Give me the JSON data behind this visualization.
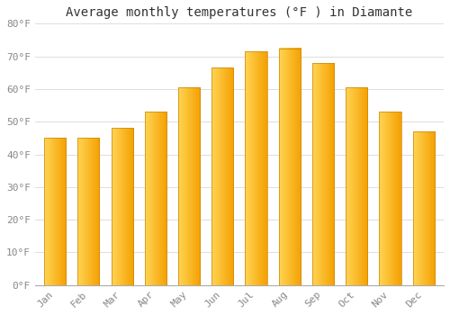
{
  "title": "Average monthly temperatures (°F ) in Diamante",
  "months": [
    "Jan",
    "Feb",
    "Mar",
    "Apr",
    "May",
    "Jun",
    "Jul",
    "Aug",
    "Sep",
    "Oct",
    "Nov",
    "Dec"
  ],
  "values": [
    45,
    45,
    48,
    53,
    60.5,
    66.5,
    71.5,
    72.5,
    68,
    60.5,
    53,
    47
  ],
  "bar_color_left": "#FFD555",
  "bar_color_right": "#F5A000",
  "bar_edge_color": "#C8860A",
  "ylim": [
    0,
    80
  ],
  "yticks": [
    0,
    10,
    20,
    30,
    40,
    50,
    60,
    70,
    80
  ],
  "ytick_labels": [
    "0°F",
    "10°F",
    "20°F",
    "30°F",
    "40°F",
    "50°F",
    "60°F",
    "70°F",
    "80°F"
  ],
  "bg_color": "#FFFFFF",
  "grid_color": "#DDDDDD",
  "title_fontsize": 10,
  "tick_fontsize": 8,
  "tick_color": "#888888"
}
